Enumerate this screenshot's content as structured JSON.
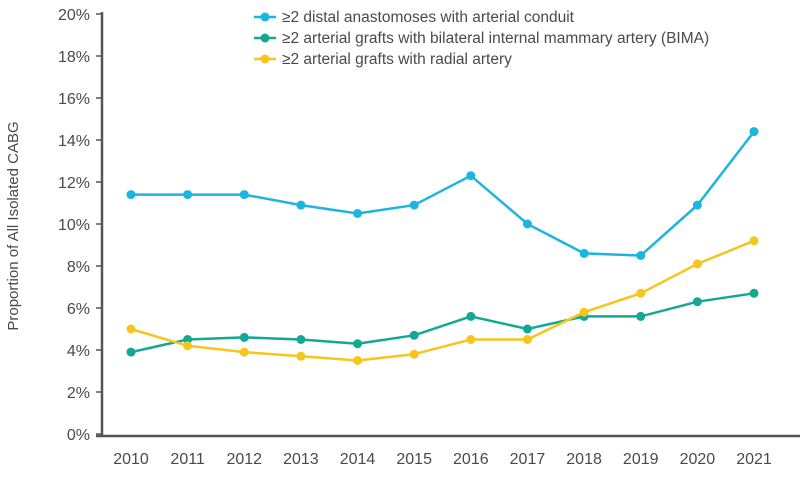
{
  "chart_data": {
    "type": "line",
    "title": "",
    "xlabel": "",
    "ylabel": "Proportion of All Isolated CABG",
    "ylim": [
      0,
      20
    ],
    "yticks": [
      "0%",
      "2%",
      "4%",
      "6%",
      "8%",
      "10%",
      "12%",
      "14%",
      "16%",
      "18%",
      "20%"
    ],
    "grid": false,
    "legend_position": "top",
    "x": [
      "2010",
      "2011",
      "2012",
      "2013",
      "2014",
      "2015",
      "2016",
      "2017",
      "2018",
      "2019",
      "2020",
      "2021"
    ],
    "series": [
      {
        "name": "≥2 distal anastomoses with arterial conduit",
        "color": "#1cb5e0",
        "values": [
          11.4,
          11.4,
          11.4,
          10.9,
          10.5,
          10.9,
          12.3,
          10.0,
          8.6,
          8.5,
          10.9,
          14.4
        ]
      },
      {
        "name": "≥2 arterial grafts with bilateral internal mammary artery (BIMA)",
        "color": "#14a894",
        "values": [
          3.9,
          4.5,
          4.6,
          4.5,
          4.3,
          4.7,
          5.6,
          5.0,
          5.6,
          5.6,
          6.3,
          6.7
        ]
      },
      {
        "name": "≥2 arterial grafts with radial artery",
        "color": "#f6c51e",
        "values": [
          5.0,
          4.2,
          3.9,
          3.7,
          3.5,
          3.8,
          4.5,
          4.5,
          5.8,
          6.7,
          8.1,
          9.2
        ]
      }
    ]
  }
}
